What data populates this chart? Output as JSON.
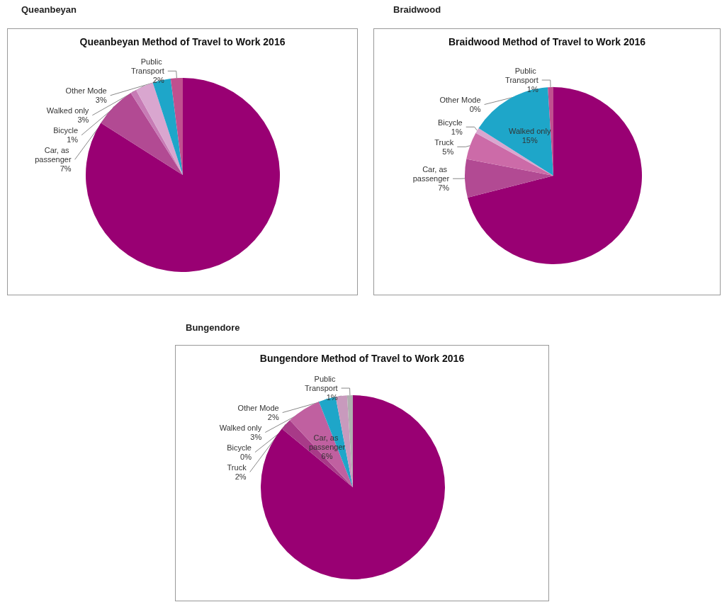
{
  "chart_data": [
    {
      "type": "pie",
      "title": "Queanbeyan Method of Travel to Work 2016",
      "annotations": [
        "Queanbeyan"
      ],
      "categories": [
        null,
        "Car, as passenger",
        "Bicycle",
        "Walked only",
        "Other Mode",
        "Public Transport"
      ],
      "values": [
        84,
        7,
        1,
        3,
        3,
        2
      ],
      "value_labels": [
        null,
        "7%",
        "1%",
        "3%",
        "3%",
        "2%"
      ],
      "colors": [
        "#990073",
        "#b24a93",
        "#c77bb5",
        "#d9a6cf",
        "#1ea6c9",
        "#c0508f"
      ]
    },
    {
      "type": "pie",
      "title": "Braidwood Method of Travel to Work 2016",
      "annotations": [
        "Braidwood"
      ],
      "categories": [
        null,
        "Car, as passenger",
        "Truck",
        "Bicycle",
        "Walked only",
        "Public Transport",
        "Other Mode"
      ],
      "values": [
        71,
        7,
        5,
        1,
        15,
        1,
        0
      ],
      "value_labels": [
        null,
        "7%",
        "5%",
        "1%",
        "15%",
        "1%",
        "0%"
      ],
      "colors": [
        "#990073",
        "#b24a93",
        "#cc6ba8",
        "#d9a6cf",
        "#1ea6c9",
        "#c0508f",
        "#e0b0d0"
      ]
    },
    {
      "type": "pie",
      "title": "Bungendore Method of Travel to Work 2016",
      "annotations": [
        "Bungendore"
      ],
      "categories": [
        null,
        "Truck",
        "Car, as passenger",
        "Bicycle",
        "Walked only",
        "Other Mode",
        "Public Transport"
      ],
      "values": [
        86,
        2,
        6,
        0,
        3,
        2,
        1
      ],
      "value_labels": [
        null,
        "2%",
        "6%",
        "0%",
        "3%",
        "2%",
        "1%"
      ],
      "colors": [
        "#990073",
        "#a83a88",
        "#c060a0",
        "#d9a6cf",
        "#1ea6c9",
        "#c89abd",
        "#b0b0b0"
      ]
    }
  ]
}
